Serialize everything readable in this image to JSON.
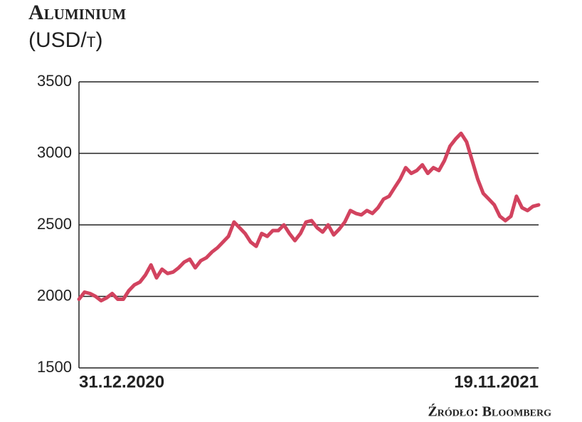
{
  "chart_data": {
    "type": "line",
    "title": "Aluminium",
    "subtitle": "(USD/t)",
    "source": "Źródło: Bloomberg",
    "categories": [
      "31.12.2020",
      null,
      null,
      null,
      null,
      null,
      null,
      null,
      null,
      null,
      null,
      null,
      null,
      null,
      null,
      null,
      null,
      null,
      null,
      null,
      null,
      null,
      null,
      null,
      null,
      null,
      null,
      null,
      null,
      null,
      null,
      null,
      null,
      null,
      null,
      null,
      null,
      null,
      null,
      null,
      null,
      null,
      null,
      null,
      null,
      null,
      null,
      null,
      null,
      null,
      null,
      null,
      null,
      null,
      null,
      null,
      null,
      null,
      null,
      null,
      null,
      null,
      null,
      null,
      null,
      null,
      null,
      null,
      null,
      null,
      null,
      null,
      null,
      null,
      null,
      null,
      null,
      null,
      null,
      null,
      null,
      null,
      null,
      "19.11.2021"
    ],
    "series": [
      {
        "name": "Aluminium",
        "color": "#d2435f",
        "values": [
          1980,
          2030,
          2020,
          2000,
          1970,
          1990,
          2020,
          1980,
          1980,
          2040,
          2080,
          2100,
          2150,
          2220,
          2130,
          2190,
          2160,
          2170,
          2200,
          2240,
          2260,
          2200,
          2250,
          2270,
          2310,
          2340,
          2380,
          2420,
          2520,
          2480,
          2440,
          2380,
          2350,
          2440,
          2420,
          2460,
          2460,
          2500,
          2440,
          2390,
          2440,
          2520,
          2530,
          2480,
          2450,
          2500,
          2430,
          2470,
          2520,
          2600,
          2580,
          2570,
          2600,
          2580,
          2620,
          2680,
          2700,
          2760,
          2820,
          2900,
          2860,
          2880,
          2920,
          2860,
          2900,
          2880,
          2950,
          3050,
          3100,
          3140,
          3080,
          2950,
          2820,
          2720,
          2680,
          2640,
          2560,
          2530,
          2560,
          2700,
          2620,
          2600,
          2630,
          2640
        ]
      }
    ],
    "ylim": [
      1500,
      3500
    ],
    "yticks": [
      1500,
      2000,
      2500,
      3000,
      3500
    ],
    "grid": true
  }
}
